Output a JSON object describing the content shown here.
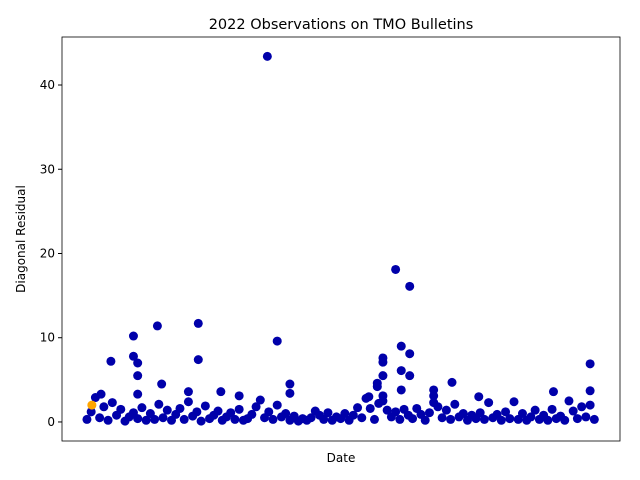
{
  "chart_data": {
    "type": "scatter",
    "title": "2022 Observations on TMO Bulletins",
    "x_label": "Date",
    "y_label": "Diagonal Residual",
    "xlim": [
      -16.7,
      379.2
    ],
    "ylim": [
      -2.26,
      45.7
    ],
    "yticks": [
      0,
      10,
      20,
      30,
      40
    ],
    "series": [
      {
        "color": "#0000aa",
        "x": [
          129,
          220,
          230,
          34,
          51,
          80,
          136,
          224,
          211,
          211,
          230,
          80,
          18,
          34,
          37,
          358,
          37,
          54,
          211,
          230,
          224,
          207,
          207,
          145,
          260,
          247,
          224,
          358,
          332,
          96,
          73,
          145,
          37,
          11,
          109,
          279,
          201,
          211,
          247
        ],
        "values": [
          43.4,
          18.1,
          16.1,
          10.2,
          11.4,
          11.7,
          9.6,
          9.0,
          7.6,
          7.1,
          8.1,
          7.4,
          7.2,
          7.8,
          7.0,
          6.9,
          5.5,
          4.5,
          5.5,
          5.5,
          6.1,
          4.6,
          4.2,
          4.5,
          4.7,
          3.8,
          3.8,
          3.7,
          3.6,
          3.6,
          3.6,
          3.4,
          3.3,
          3.3,
          3.1,
          3.0,
          3.0,
          3.1,
          3.1
        ]
      },
      {
        "color": "#0000aa",
        "x": [
          1,
          4,
          7,
          10,
          13,
          16,
          19,
          22,
          25,
          28,
          31,
          34,
          37,
          40,
          43,
          46,
          49,
          52,
          55,
          58,
          61,
          64,
          67,
          70,
          73,
          76,
          79,
          82,
          85,
          88,
          91,
          94,
          97,
          100,
          103,
          106,
          109,
          112,
          115,
          118,
          121,
          124,
          127,
          130,
          133,
          136,
          139,
          142,
          145,
          148,
          151,
          154,
          157,
          160,
          163,
          166,
          169,
          172,
          175,
          178,
          181,
          184,
          187,
          190,
          193,
          196,
          199,
          202,
          205,
          208,
          211,
          214,
          217,
          220,
          223,
          226,
          229,
          232,
          235,
          238,
          241,
          244,
          247,
          250,
          253,
          256,
          259,
          262,
          265,
          268,
          271,
          274,
          277,
          280,
          283,
          286,
          289,
          292,
          295,
          298,
          301,
          304,
          307,
          310,
          313,
          316,
          319,
          322,
          325,
          328,
          331,
          334,
          337,
          340,
          343,
          346,
          349,
          352,
          355,
          358,
          361
        ],
        "values": [
          0.3,
          1.2,
          2.9,
          0.5,
          1.8,
          0.2,
          2.3,
          0.8,
          1.5,
          0.1,
          0.6,
          1.1,
          0.4,
          1.7,
          0.2,
          1.0,
          0.3,
          2.1,
          0.5,
          1.4,
          0.2,
          0.9,
          1.6,
          0.3,
          2.4,
          0.7,
          1.2,
          0.1,
          1.9,
          0.4,
          0.8,
          1.3,
          0.2,
          0.6,
          1.1,
          0.3,
          1.5,
          0.2,
          0.4,
          0.9,
          1.8,
          2.6,
          0.5,
          1.2,
          0.3,
          2.0,
          0.6,
          1.0,
          0.2,
          0.7,
          0.1,
          0.4,
          0.2,
          0.5,
          1.3,
          0.8,
          0.3,
          1.1,
          0.2,
          0.6,
          0.4,
          1.0,
          0.2,
          0.8,
          1.7,
          0.5,
          2.8,
          1.6,
          0.3,
          2.2,
          2.5,
          1.4,
          0.6,
          1.2,
          0.3,
          1.5,
          0.8,
          0.4,
          1.6,
          0.9,
          0.2,
          1.1,
          2.3,
          1.8,
          0.5,
          1.4,
          0.3,
          2.1,
          0.6,
          1.0,
          0.2,
          0.8,
          0.4,
          1.1,
          0.3,
          2.3,
          0.5,
          0.9,
          0.2,
          1.2,
          0.4,
          2.4,
          0.3,
          1.0,
          0.2,
          0.6,
          1.4,
          0.3,
          0.8,
          0.2,
          1.5,
          0.4,
          0.7,
          0.2,
          2.5,
          1.3,
          0.4,
          1.8,
          0.6,
          2.0,
          0.3
        ]
      },
      {
        "color": "#ffa500",
        "x": [
          4.5
        ],
        "values": [
          2.0
        ]
      }
    ]
  }
}
